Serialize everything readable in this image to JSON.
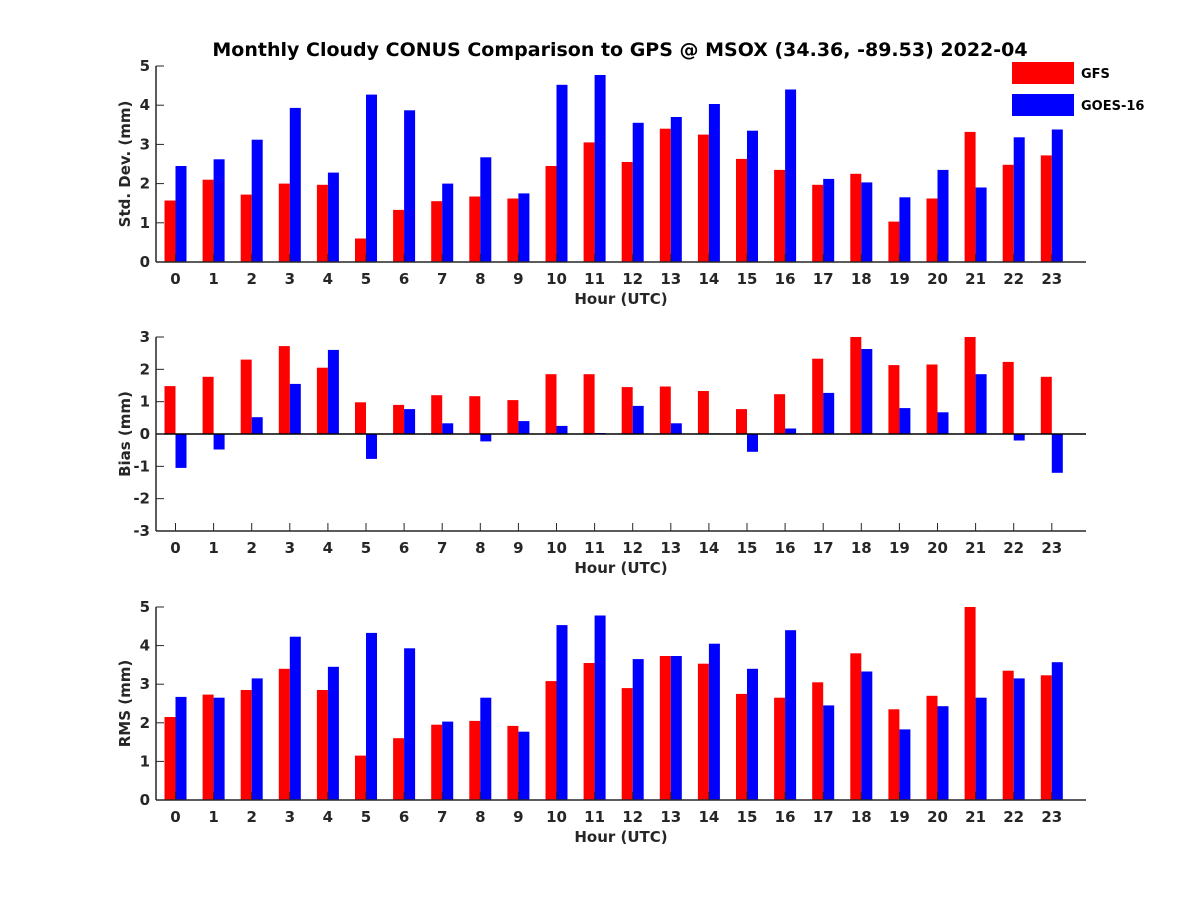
{
  "title": "Monthly Cloudy CONUS Comparison to GPS @ MSOX (34.36, -89.53) 2022-04",
  "legend": [
    {
      "name": "GFS",
      "color": "#ff0000"
    },
    {
      "name": "GOES-16",
      "color": "#0000ff"
    }
  ],
  "chart_data": [
    {
      "type": "bar",
      "categories": [
        "0",
        "1",
        "2",
        "3",
        "4",
        "5",
        "6",
        "7",
        "8",
        "9",
        "10",
        "11",
        "12",
        "13",
        "14",
        "15",
        "16",
        "17",
        "18",
        "19",
        "20",
        "21",
        "22",
        "23"
      ],
      "xlabel": "Hour (UTC)",
      "ylabel": "Std. Dev. (mm)",
      "ylim": [
        0,
        5
      ],
      "yticks": [
        "0",
        "1",
        "2",
        "3",
        "4",
        "5"
      ],
      "series": [
        {
          "name": "GFS",
          "color": "#ff0000",
          "values": [
            1.57,
            2.1,
            1.72,
            2.0,
            1.97,
            0.6,
            1.33,
            1.55,
            1.67,
            1.62,
            2.45,
            3.05,
            2.55,
            3.4,
            3.25,
            2.63,
            2.35,
            1.97,
            2.25,
            1.03,
            1.62,
            3.32,
            2.48,
            2.72
          ]
        },
        {
          "name": "GOES-16",
          "color": "#0000ff",
          "values": [
            2.45,
            2.62,
            3.12,
            3.93,
            2.28,
            4.27,
            3.87,
            2.0,
            2.67,
            1.75,
            4.52,
            4.77,
            3.55,
            3.7,
            4.03,
            3.35,
            4.4,
            2.12,
            2.03,
            1.65,
            2.35,
            1.9,
            3.18,
            3.38
          ]
        }
      ]
    },
    {
      "type": "bar",
      "categories": [
        "0",
        "1",
        "2",
        "3",
        "4",
        "5",
        "6",
        "7",
        "8",
        "9",
        "10",
        "11",
        "12",
        "13",
        "14",
        "15",
        "16",
        "17",
        "18",
        "19",
        "20",
        "21",
        "22",
        "23"
      ],
      "xlabel": "Hour (UTC)",
      "ylabel": "Bias (mm)",
      "ylim": [
        -3,
        3
      ],
      "yticks": [
        "-3",
        "-2",
        "-1",
        "0",
        "1",
        "2",
        "3"
      ],
      "zero_line": true,
      "series": [
        {
          "name": "GFS",
          "color": "#ff0000",
          "values": [
            1.48,
            1.77,
            2.3,
            2.72,
            2.05,
            0.98,
            0.9,
            1.2,
            1.17,
            1.05,
            1.85,
            1.85,
            1.45,
            1.47,
            1.33,
            0.77,
            1.23,
            2.33,
            3.0,
            2.13,
            2.15,
            3.0,
            2.23,
            1.77
          ]
        },
        {
          "name": "GOES-16",
          "color": "#0000ff",
          "values": [
            -1.05,
            -0.48,
            0.52,
            1.55,
            2.6,
            -0.77,
            0.77,
            0.33,
            -0.23,
            0.4,
            0.25,
            0.03,
            0.87,
            0.33,
            0.02,
            -0.55,
            0.17,
            1.27,
            2.63,
            0.8,
            0.67,
            1.85,
            -0.2,
            -1.2
          ]
        }
      ]
    },
    {
      "type": "bar",
      "categories": [
        "0",
        "1",
        "2",
        "3",
        "4",
        "5",
        "6",
        "7",
        "8",
        "9",
        "10",
        "11",
        "12",
        "13",
        "14",
        "15",
        "16",
        "17",
        "18",
        "19",
        "20",
        "21",
        "22",
        "23"
      ],
      "xlabel": "Hour (UTC)",
      "ylabel": "RMS (mm)",
      "ylim": [
        0,
        5
      ],
      "yticks": [
        "0",
        "1",
        "2",
        "3",
        "4",
        "5"
      ],
      "series": [
        {
          "name": "GFS",
          "color": "#ff0000",
          "values": [
            2.15,
            2.73,
            2.85,
            3.4,
            2.85,
            1.15,
            1.6,
            1.95,
            2.05,
            1.92,
            3.08,
            3.55,
            2.9,
            3.73,
            3.53,
            2.75,
            2.65,
            3.05,
            3.8,
            2.35,
            2.7,
            5.0,
            3.35,
            3.23
          ]
        },
        {
          "name": "GOES-16",
          "color": "#0000ff",
          "values": [
            2.67,
            2.65,
            3.15,
            4.23,
            3.45,
            4.33,
            3.93,
            2.03,
            2.65,
            1.77,
            4.53,
            4.78,
            3.65,
            3.73,
            4.05,
            3.4,
            4.4,
            2.45,
            3.33,
            1.83,
            2.43,
            2.65,
            3.15,
            3.57
          ]
        }
      ]
    }
  ]
}
